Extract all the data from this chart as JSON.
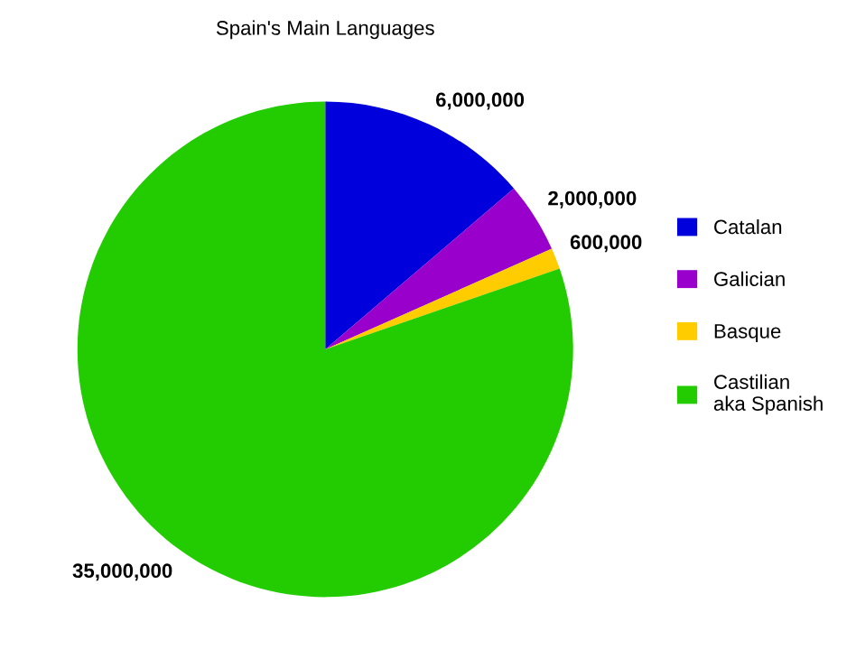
{
  "chart_data": {
    "type": "pie",
    "title": "Spain's Main Languages",
    "categories": [
      "Catalan",
      "Galician",
      "Basque",
      "Castilian\naka Spanish"
    ],
    "values": [
      6000000,
      2000000,
      600000,
      35000000
    ],
    "colors": [
      "#0000dd",
      "#9900cc",
      "#ffcc00",
      "#22cc00"
    ],
    "value_labels": [
      "6,000,000",
      "2,000,000",
      "600,000",
      "35,000,000"
    ],
    "legend": "right"
  }
}
